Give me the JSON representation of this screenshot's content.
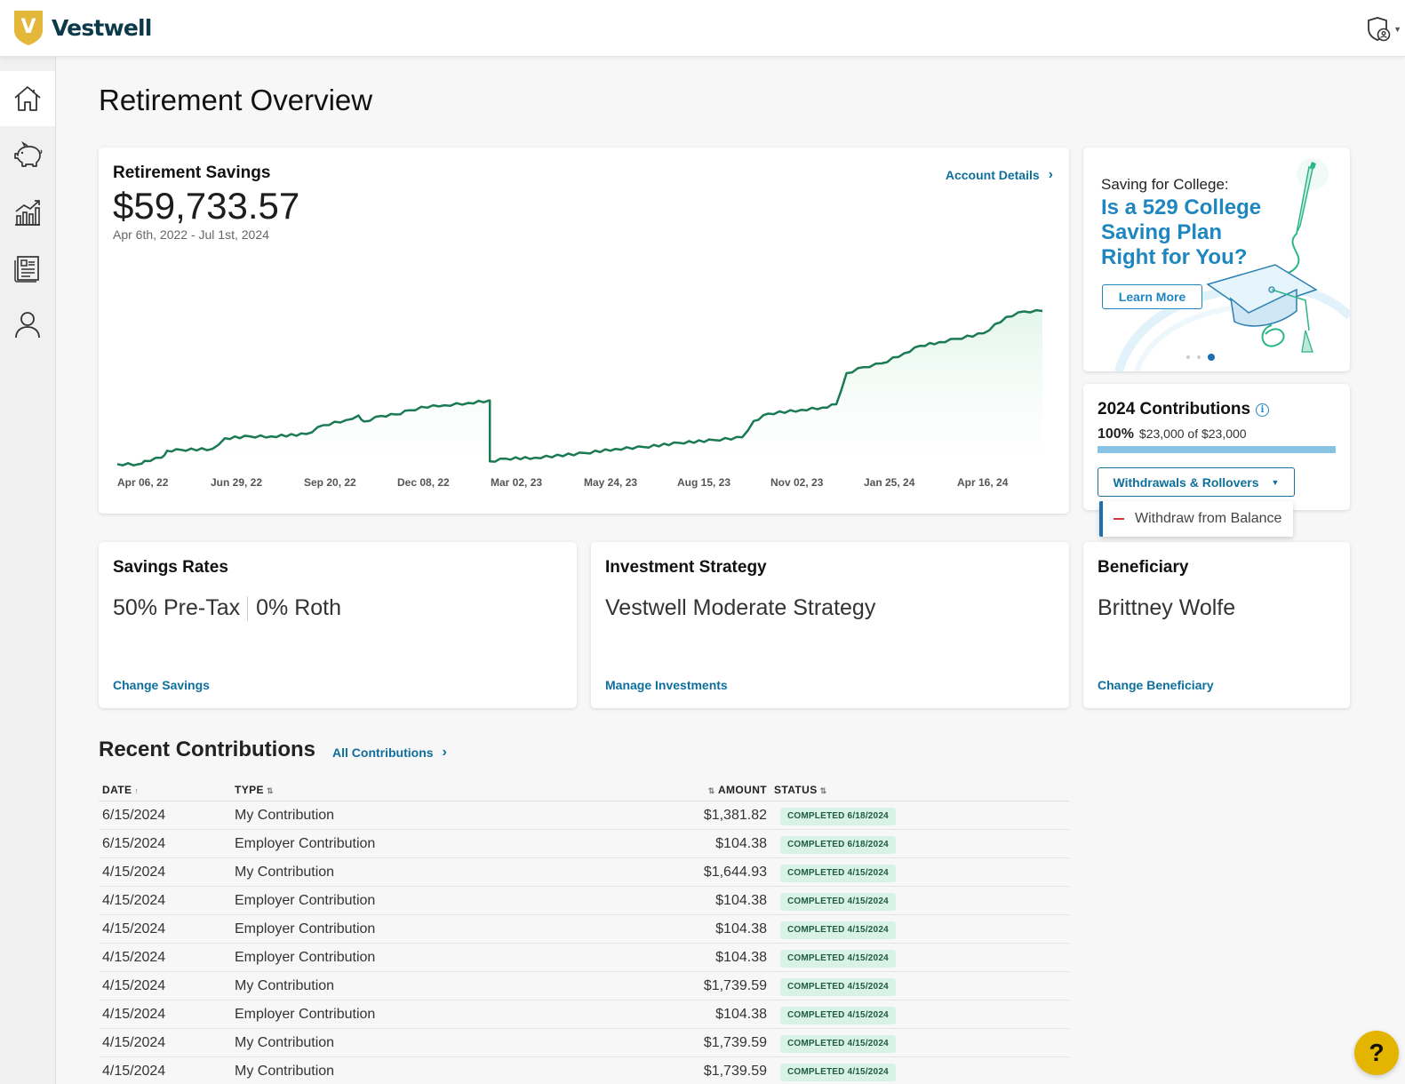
{
  "header": {
    "brand": "Vestwell",
    "logo_letter": "V",
    "logo_color": "#e3b73a"
  },
  "sidebar": {
    "items": [
      {
        "icon": "home-icon",
        "active": true
      },
      {
        "icon": "piggy-bank-icon",
        "active": false
      },
      {
        "icon": "growth-chart-icon",
        "active": false
      },
      {
        "icon": "document-icon",
        "active": false
      },
      {
        "icon": "user-icon",
        "active": false
      }
    ]
  },
  "page": {
    "title": "Retirement Overview"
  },
  "savings": {
    "title": "Retirement Savings",
    "balance": "$59,733.57",
    "date_range": "Apr 6th, 2022 - Jul 1st, 2024",
    "account_details_label": "Account Details"
  },
  "chart_data": {
    "type": "area",
    "title": "",
    "xlabel": "",
    "ylabel": "",
    "x_ticks": [
      "Apr 06, 22",
      "Jun 29, 22",
      "Sep 20, 22",
      "Dec 08, 22",
      "Mar 02, 23",
      "May 24, 23",
      "Aug 15, 23",
      "Nov 02, 23",
      "Jan 25, 24",
      "Apr 16, 24"
    ],
    "xlim": [
      "2022-04-06",
      "2024-07-01"
    ],
    "y_axis_labels": false,
    "grid": false,
    "line_color": "#1a7a53",
    "fill_color": "#e3f6ec",
    "series": [
      {
        "x": [
          "2022-04-06",
          "2022-04-25",
          "2022-04-30",
          "2022-05-15",
          "2022-05-20",
          "2022-06-01",
          "2022-06-29",
          "2022-07-10",
          "2022-08-01",
          "2022-08-20",
          "2022-09-20",
          "2022-10-05",
          "2022-10-25",
          "2022-11-05",
          "2022-11-10",
          "2022-11-25",
          "2022-12-08",
          "2022-12-20",
          "2023-01-10",
          "2023-01-20",
          "2023-02-10",
          "2023-02-28",
          "2023-03-01",
          "2023-03-15",
          "2023-04-10",
          "2023-05-24",
          "2023-06-20",
          "2023-07-15",
          "2023-08-15",
          "2023-09-15",
          "2023-10-10",
          "2023-10-20",
          "2023-11-02",
          "2023-12-01",
          "2023-12-20",
          "2024-01-01",
          "2024-01-10",
          "2024-01-25",
          "2024-02-10",
          "2024-03-01",
          "2024-03-15",
          "2024-04-01",
          "2024-04-16",
          "2024-05-10",
          "2024-05-30",
          "2024-06-15",
          "2024-07-01"
        ],
        "values": [
          0.3,
          0.3,
          1.0,
          1.7,
          3.2,
          3.4,
          3.6,
          5.9,
          6.3,
          6.3,
          6.8,
          8.7,
          9.8,
          10.8,
          9.5,
          10.7,
          11.0,
          11.9,
          13.0,
          13.0,
          13.5,
          14.0,
          0.9,
          1.5,
          1.7,
          2.7,
          3.6,
          4.0,
          4.9,
          5.5,
          6.1,
          9.6,
          11.2,
          12.0,
          12.5,
          13.2,
          19.9,
          21.2,
          22.0,
          24.2,
          25.8,
          26.6,
          27.3,
          28.5,
          32.0,
          33.2,
          33.3
        ]
      }
    ]
  },
  "promo": {
    "kicker": "Saving for College:",
    "headline": "Is a 529 College Saving Plan Right for You?",
    "cta": "Learn More",
    "slides": 3,
    "active_slide": 3
  },
  "contributions": {
    "title": "2024 Contributions",
    "percent": "100%",
    "amount_text": "$23,000 of $23,000",
    "progress_fraction": 1.0,
    "dropdown_label": "Withdrawals & Rollovers",
    "menu_item": "Withdraw from Balance"
  },
  "savings_rates": {
    "title": "Savings Rates",
    "pretax": "50% Pre-Tax",
    "roth": "0% Roth",
    "link": "Change Savings"
  },
  "investment": {
    "title": "Investment Strategy",
    "value": "Vestwell Moderate Strategy",
    "link": "Manage Investments"
  },
  "beneficiary": {
    "title": "Beneficiary",
    "value": "Brittney Wolfe",
    "link": "Change Beneficiary"
  },
  "recent": {
    "title": "Recent Contributions",
    "all_link": "All Contributions",
    "columns": {
      "date": "DATE",
      "type": "TYPE",
      "amount": "AMOUNT",
      "status": "STATUS"
    },
    "rows": [
      {
        "date": "6/15/2024",
        "type": "My Contribution",
        "amount": "$1,381.82",
        "status": "COMPLETED 6/18/2024"
      },
      {
        "date": "6/15/2024",
        "type": "Employer Contribution",
        "amount": "$104.38",
        "status": "COMPLETED 6/18/2024"
      },
      {
        "date": "4/15/2024",
        "type": "My Contribution",
        "amount": "$1,644.93",
        "status": "COMPLETED 4/15/2024"
      },
      {
        "date": "4/15/2024",
        "type": "Employer Contribution",
        "amount": "$104.38",
        "status": "COMPLETED 4/15/2024"
      },
      {
        "date": "4/15/2024",
        "type": "Employer Contribution",
        "amount": "$104.38",
        "status": "COMPLETED 4/15/2024"
      },
      {
        "date": "4/15/2024",
        "type": "Employer Contribution",
        "amount": "$104.38",
        "status": "COMPLETED 4/15/2024"
      },
      {
        "date": "4/15/2024",
        "type": "My Contribution",
        "amount": "$1,739.59",
        "status": "COMPLETED 4/15/2024"
      },
      {
        "date": "4/15/2024",
        "type": "Employer Contribution",
        "amount": "$104.38",
        "status": "COMPLETED 4/15/2024"
      },
      {
        "date": "4/15/2024",
        "type": "My Contribution",
        "amount": "$1,739.59",
        "status": "COMPLETED 4/15/2024"
      },
      {
        "date": "4/15/2024",
        "type": "My Contribution",
        "amount": "$1,739.59",
        "status": "COMPLETED 4/15/2024"
      }
    ]
  },
  "help": {
    "label": "?"
  }
}
